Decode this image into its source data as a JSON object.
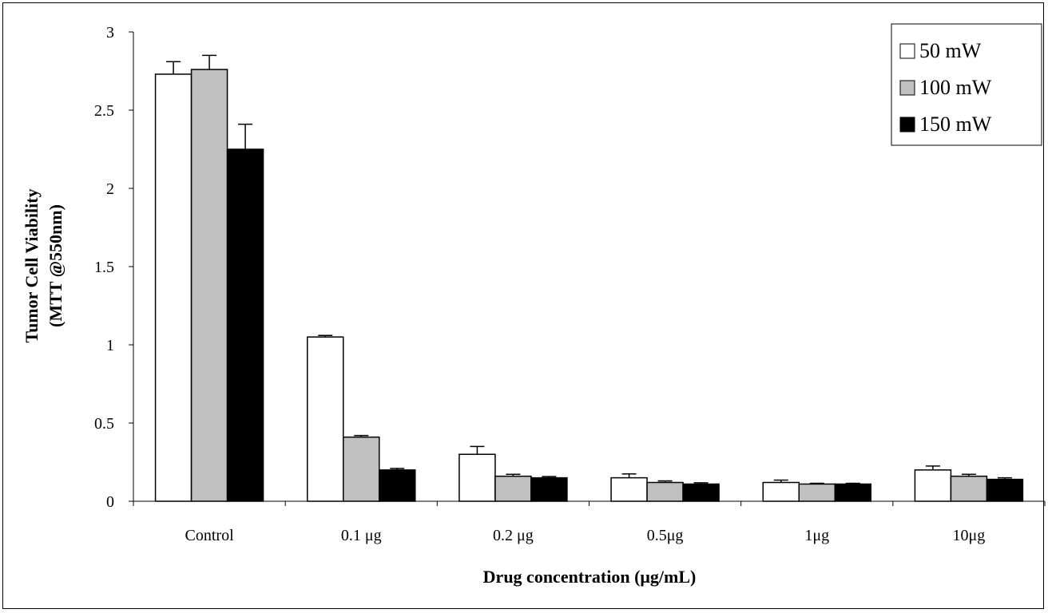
{
  "chart_data": {
    "type": "bar",
    "title": "",
    "xlabel": "Drug concentration (μg/mL)",
    "ylabel_line1": "Tumor Cell Viability",
    "ylabel_line2": "(MTT @550nm)",
    "ylim": [
      0,
      3
    ],
    "yticks": [
      "0",
      "0.5",
      "1",
      "1.5",
      "2",
      "2.5",
      "3"
    ],
    "categories": [
      "Control",
      "0.1 μg",
      "0.2 μg",
      "0.5μg",
      "1μg",
      "10μg"
    ],
    "series": [
      {
        "name": "50 mW",
        "color": "#ffffff",
        "values": [
          2.73,
          1.05,
          0.3,
          0.15,
          0.12,
          0.2
        ],
        "errors": [
          0.08,
          0.01,
          0.05,
          0.025,
          0.015,
          0.025
        ]
      },
      {
        "name": "100 mW",
        "color": "#c0c0c0",
        "values": [
          2.76,
          0.41,
          0.16,
          0.12,
          0.11,
          0.16
        ],
        "errors": [
          0.09,
          0.01,
          0.012,
          0.01,
          0.005,
          0.012
        ]
      },
      {
        "name": "150 mW",
        "color": "#000000",
        "values": [
          2.25,
          0.2,
          0.15,
          0.11,
          0.11,
          0.14
        ],
        "errors": [
          0.16,
          0.01,
          0.008,
          0.008,
          0.005,
          0.01
        ]
      }
    ],
    "grid": false,
    "legend_position": "top-right"
  }
}
